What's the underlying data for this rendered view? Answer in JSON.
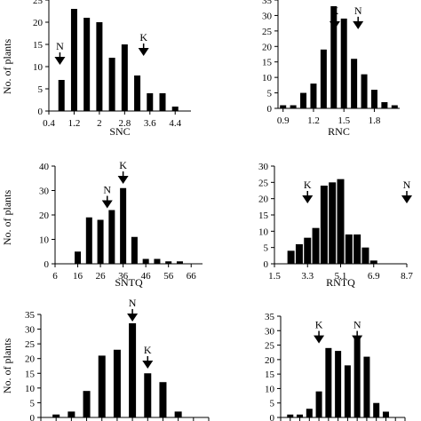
{
  "chart_data": [
    {
      "type": "bar",
      "ylabel": "No. of plants",
      "xlabel": "SNC",
      "ylim": [
        0,
        25
      ],
      "xlim": [
        0.4,
        4.9
      ],
      "yticks": [
        0,
        5,
        10,
        15,
        20,
        25
      ],
      "xticks": [
        "0.4",
        "1.2",
        "2",
        "2.8",
        "3.6",
        "4.4"
      ],
      "xtick_values": [
        0.4,
        1.2,
        2.0,
        2.8,
        3.6,
        4.4
      ],
      "bin_centers": [
        0.8,
        1.2,
        1.6,
        2.0,
        2.4,
        2.8,
        3.2,
        3.6,
        4.0,
        4.4
      ],
      "values": [
        7,
        23,
        21,
        20,
        12,
        15,
        8,
        4,
        4,
        1
      ],
      "markers": [
        {
          "label": "N",
          "x": 0.75,
          "y": 10
        },
        {
          "label": "K",
          "x": 3.4,
          "y": 12
        }
      ]
    },
    {
      "type": "bar",
      "ylabel": "",
      "xlabel": "RNC",
      "ylim": [
        0,
        35
      ],
      "xlim": [
        0.85,
        2.05
      ],
      "yticks": [
        0,
        5,
        10,
        15,
        20,
        25,
        30,
        35
      ],
      "xticks": [
        "0.9",
        "1.2",
        "1.5",
        "1.8"
      ],
      "xtick_values": [
        0.9,
        1.2,
        1.5,
        1.8
      ],
      "bin_centers": [
        0.9,
        1.0,
        1.1,
        1.2,
        1.3,
        1.4,
        1.5,
        1.6,
        1.7,
        1.8,
        1.9,
        2.0
      ],
      "values": [
        1,
        1,
        5,
        8,
        19,
        33,
        29,
        16,
        11,
        6,
        2,
        1
      ],
      "markers": [
        {
          "label": "K",
          "x": 1.41,
          "y": 25
        },
        {
          "label": "N",
          "x": 1.64,
          "y": 25
        }
      ]
    },
    {
      "type": "bar",
      "ylabel": "No. of plants",
      "xlabel": "SNTQ",
      "ylim": [
        0,
        40
      ],
      "xlim": [
        6,
        71
      ],
      "yticks": [
        0,
        10,
        20,
        30,
        40
      ],
      "xticks": [
        "6",
        "16",
        "26",
        "36",
        "46",
        "56",
        "66"
      ],
      "xtick_values": [
        6,
        16,
        26,
        36,
        46,
        56,
        66
      ],
      "bin_centers": [
        16,
        21,
        26,
        31,
        36,
        41,
        46,
        51,
        56,
        61,
        66
      ],
      "values": [
        5,
        19,
        18,
        22,
        31,
        11,
        2,
        2,
        1,
        1,
        0
      ],
      "markers": [
        {
          "label": "N",
          "x": 29,
          "y": 22
        },
        {
          "label": "K",
          "x": 36,
          "y": 32
        }
      ]
    },
    {
      "type": "bar",
      "ylabel": "",
      "xlabel": "RNTQ",
      "ylim": [
        0,
        30
      ],
      "xlim": [
        1.5,
        8.7
      ],
      "yticks": [
        0,
        5,
        10,
        15,
        20,
        25,
        30
      ],
      "xticks": [
        "1.5",
        "3.3",
        "5.1",
        "6.9",
        "8.7"
      ],
      "xtick_values": [
        1.5,
        3.3,
        5.1,
        6.9,
        8.7
      ],
      "bin_centers": [
        2.4,
        2.85,
        3.3,
        3.75,
        4.2,
        4.65,
        5.1,
        5.55,
        6.0,
        6.45,
        6.9
      ],
      "values": [
        4,
        6,
        8,
        11,
        24,
        25,
        26,
        9,
        9,
        5,
        1
      ],
      "markers": [
        {
          "label": "K",
          "x": 3.3,
          "y": 18
        },
        {
          "label": "N",
          "x": 8.7,
          "y": 18
        }
      ]
    },
    {
      "type": "bar",
      "ylabel": "No. of plants",
      "xlabel": "",
      "ylim": [
        0,
        35
      ],
      "xlim": [
        0,
        11
      ],
      "yticks": [
        0,
        5,
        10,
        15,
        20,
        25,
        30,
        35
      ],
      "xticks": [],
      "bin_centers": [
        1,
        2,
        3,
        4,
        5,
        6,
        7,
        8,
        9,
        10
      ],
      "values": [
        1,
        2,
        9,
        21,
        23,
        32,
        15,
        12,
        2,
        0
      ],
      "markers": [
        {
          "label": "N",
          "x": 6,
          "y": 32
        },
        {
          "label": "K",
          "x": 7,
          "y": 16
        }
      ]
    },
    {
      "type": "bar",
      "ylabel": "",
      "xlabel": "",
      "ylim": [
        0,
        35
      ],
      "xlim": [
        0,
        13
      ],
      "yticks": [
        0,
        5,
        10,
        15,
        20,
        25,
        30,
        35
      ],
      "xticks": [],
      "bin_centers": [
        1,
        2,
        3,
        4,
        5,
        6,
        7,
        8,
        9,
        10,
        11,
        12
      ],
      "values": [
        1,
        1,
        3,
        9,
        24,
        23,
        18,
        28,
        21,
        5,
        2,
        0
      ],
      "markers": [
        {
          "label": "K",
          "x": 4,
          "y": 25
        },
        {
          "label": "N",
          "x": 8,
          "y": 25
        }
      ]
    }
  ]
}
